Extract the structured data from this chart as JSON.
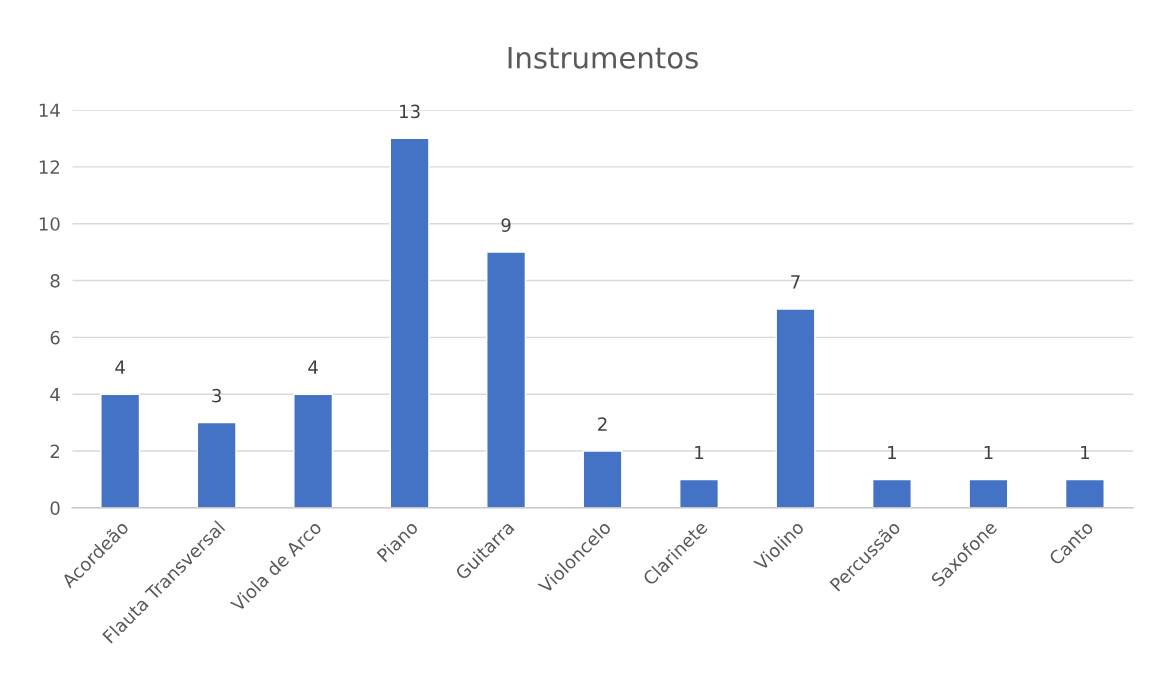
{
  "chart_data": {
    "type": "bar",
    "title": "Instrumentos",
    "categories": [
      "Acordeão",
      "Flauta Transversal",
      "Viola de Arco",
      "Piano",
      "Guitarra",
      "Violoncelo",
      "Clarinete",
      "Violino",
      "Percussão",
      "Saxofone",
      "Canto"
    ],
    "values": [
      4,
      3,
      4,
      13,
      9,
      2,
      1,
      7,
      1,
      1,
      1
    ],
    "color": "#4472c4",
    "ylim": [
      0,
      14
    ],
    "yticks": [
      0,
      2,
      4,
      6,
      8,
      10,
      12,
      14
    ],
    "grid": "y",
    "data_labels": true
  }
}
